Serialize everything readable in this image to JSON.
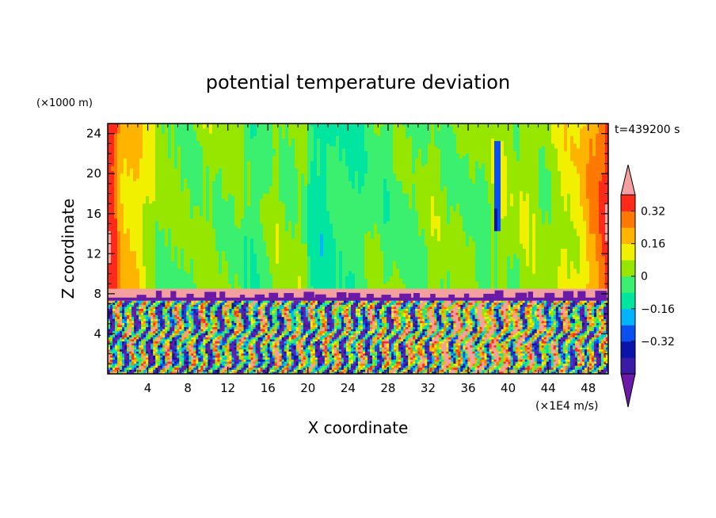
{
  "chart_data": {
    "type": "heatmap",
    "title": "potential temperature deviation",
    "xlabel": "X coordinate",
    "ylabel": "Z coordinate",
    "x_unit": "(×1E4 m/s)",
    "y_unit": "(×1000 m)",
    "time_label": "t=439200 s",
    "x_range": [
      0,
      50
    ],
    "y_range": [
      0,
      25
    ],
    "x_ticks": [
      "4",
      "8",
      "12",
      "16",
      "20",
      "24",
      "28",
      "32",
      "36",
      "40",
      "44",
      "48"
    ],
    "y_ticks": [
      "4",
      "8",
      "12",
      "16",
      "20",
      "24"
    ],
    "colorbar": {
      "levels": [
        -0.48,
        -0.4,
        -0.32,
        -0.24,
        -0.16,
        -0.08,
        0,
        0.08,
        0.16,
        0.24,
        0.32,
        0.4
      ],
      "tick_labels": [
        "0.32",
        "0.16",
        "0",
        "−0.16",
        "−0.32"
      ],
      "tick_values": [
        0.32,
        0.16,
        0,
        -0.16,
        -0.32
      ],
      "colors": {
        "below": "#6a1aa6",
        "bins": [
          "#3a1aa6",
          "#0a14a8",
          "#0a50f0",
          "#00b4ff",
          "#00e6a0",
          "#3af06e",
          "#96e600",
          "#f0f000",
          "#ffb400",
          "#ff7800",
          "#ff2a1a"
        ],
        "above": "#f4a0a0"
      }
    },
    "regions": {
      "upper_layer": {
        "z_from": 8.5,
        "z_to": 25,
        "range": [
          -0.45,
          0.45
        ]
      },
      "inversion_band": {
        "z_from": 7.3,
        "z_to": 8.5,
        "value": "above"
      },
      "lower_turbulent_layer": {
        "z_from": 0,
        "z_to": 7.3,
        "range": [
          -0.5,
          0.5
        ]
      }
    }
  }
}
